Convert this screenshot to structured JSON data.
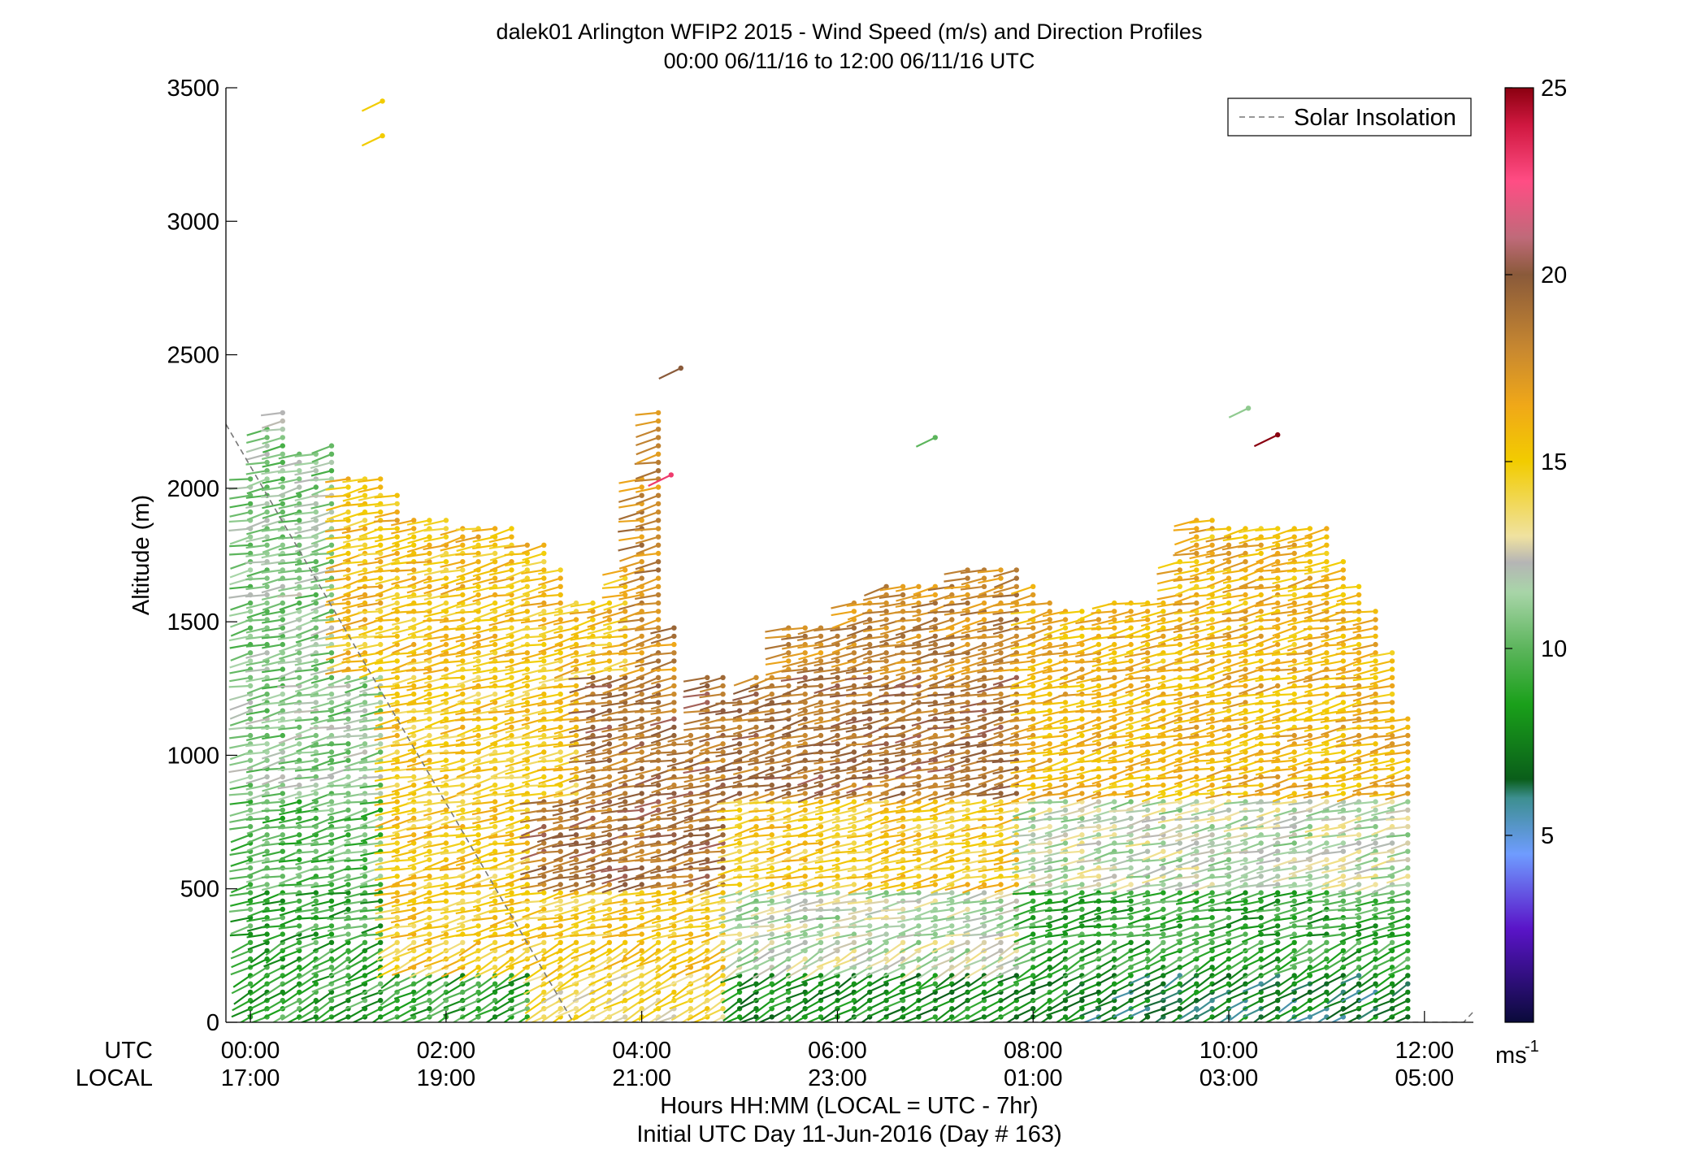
{
  "chart_data": {
    "type": "scatter",
    "title": "dalek01 Arlington WFIP2 2015 - Wind Speed (m/s) and Direction Profiles",
    "subtitle": "00:00 06/11/16 to 12:00 06/11/16  UTC",
    "ylabel": "Altitude (m)",
    "xlabel": "Hours HH:MM  (LOCAL = UTC - 7hr)",
    "xlabel2": "Initial UTC Day 11-Jun-2016 (Day # 163)",
    "row_label_utc": "UTC",
    "row_label_local": "LOCAL",
    "xlim": [
      -0.25,
      12.5
    ],
    "ylim": [
      0,
      3500
    ],
    "y_ticks": [
      0,
      500,
      1000,
      1500,
      2000,
      2500,
      3000,
      3500
    ],
    "x_ticks": [
      {
        "hour": 0,
        "utc": "00:00",
        "local": "17:00"
      },
      {
        "hour": 2,
        "utc": "02:00",
        "local": "19:00"
      },
      {
        "hour": 4,
        "utc": "04:00",
        "local": "21:00"
      },
      {
        "hour": 6,
        "utc": "06:00",
        "local": "23:00"
      },
      {
        "hour": 8,
        "utc": "08:00",
        "local": "01:00"
      },
      {
        "hour": 10,
        "utc": "10:00",
        "local": "03:00"
      },
      {
        "hour": 12,
        "utc": "12:00",
        "local": "05:00"
      }
    ],
    "legend": {
      "label": "Solar Insolation",
      "position": "top-right",
      "line_color": "#777777"
    },
    "solar_insolation": {
      "x": [
        -0.25,
        3.3,
        12.4,
        12.5
      ],
      "y": [
        2240,
        0,
        0,
        40
      ]
    },
    "colorbar": {
      "min": 0,
      "max": 25,
      "ticks": [
        5,
        10,
        15,
        20,
        25
      ],
      "unit": "ms-1",
      "stops": [
        {
          "v": 0,
          "color": "#0a0a3a"
        },
        {
          "v": 2.5,
          "color": "#5a14c8"
        },
        {
          "v": 4.5,
          "color": "#6f9cff"
        },
        {
          "v": 6,
          "color": "#3d8f90"
        },
        {
          "v": 6.5,
          "color": "#0a5e1a"
        },
        {
          "v": 8.5,
          "color": "#1aa01a"
        },
        {
          "v": 10,
          "color": "#5cb55c"
        },
        {
          "v": 11.5,
          "color": "#a8d5a8"
        },
        {
          "v": 12.3,
          "color": "#b5b5b5"
        },
        {
          "v": 13,
          "color": "#f0e2a0"
        },
        {
          "v": 15,
          "color": "#f2cc00"
        },
        {
          "v": 16.5,
          "color": "#f0a818"
        },
        {
          "v": 18,
          "color": "#c88830"
        },
        {
          "v": 20,
          "color": "#8a5a3a"
        },
        {
          "v": 21,
          "color": "#c06a7a"
        },
        {
          "v": 22.5,
          "color": "#ff4d84"
        },
        {
          "v": 24,
          "color": "#d01840"
        },
        {
          "v": 25,
          "color": "#8a0010"
        }
      ]
    },
    "profiles_note": "wind profiles every 10 minutes; each profile gives altitude-band speeds",
    "profile_times_hours": [
      0,
      0.17,
      0.33,
      0.5,
      0.67,
      0.83,
      1,
      1.17,
      1.33,
      1.5,
      1.67,
      1.83,
      2,
      2.17,
      2.33,
      2.5,
      2.67,
      2.83,
      3,
      3.17,
      3.33,
      3.5,
      3.67,
      3.83,
      4,
      4.17,
      4.33,
      4.5,
      4.67,
      4.83,
      5,
      5.17,
      5.33,
      5.5,
      5.67,
      5.83,
      6,
      6.17,
      6.33,
      6.5,
      6.67,
      6.83,
      7,
      7.17,
      7.33,
      7.5,
      7.67,
      7.83,
      8,
      8.17,
      8.33,
      8.5,
      8.67,
      8.83,
      9,
      9.17,
      9.33,
      9.5,
      9.67,
      9.83,
      10,
      10.17,
      10.33,
      10.5,
      10.67,
      10.83,
      11,
      11.17,
      11.33,
      11.5,
      11.67,
      11.83
    ],
    "profile_tops_m": [
      2050,
      2250,
      2300,
      2150,
      2150,
      2180,
      2050,
      2050,
      2050,
      2000,
      1900,
      1900,
      1900,
      1850,
      1850,
      1850,
      1850,
      1800,
      1800,
      1700,
      1600,
      1600,
      1600,
      1700,
      2050,
      2300,
      1500,
      1100,
      1300,
      1300,
      1200,
      1300,
      1300,
      1500,
      1500,
      1500,
      1500,
      1600,
      1600,
      1650,
      1650,
      1650,
      1650,
      1650,
      1700,
      1700,
      1700,
      1700,
      1650,
      1600,
      1550,
      1550,
      1550,
      1600,
      1600,
      1600,
      1600,
      1750,
      1900,
      1900,
      1850,
      1850,
      1850,
      1850,
      1850,
      1850,
      1850,
      1750,
      1650,
      1550,
      1400,
      1150
    ],
    "speed_bands": [
      {
        "alt": [
          0,
          200
        ],
        "speed_by_period": [
          [
            0,
            3,
            9
          ],
          [
            3,
            5,
            14
          ],
          [
            5,
            8.5,
            8
          ],
          [
            8.5,
            12,
            7
          ]
        ]
      },
      {
        "alt": [
          200,
          500
        ],
        "speed_by_period": [
          [
            0,
            1.5,
            9
          ],
          [
            1.5,
            5,
            15
          ],
          [
            5,
            8,
            12
          ],
          [
            8,
            12,
            9
          ]
        ]
      },
      {
        "alt": [
          500,
          850
        ],
        "speed_by_period": [
          [
            0,
            1.5,
            10
          ],
          [
            1.5,
            3,
            15
          ],
          [
            3,
            5,
            19
          ],
          [
            5,
            8,
            15
          ],
          [
            8,
            12,
            12
          ]
        ]
      },
      {
        "alt": [
          850,
          1300
        ],
        "speed_by_period": [
          [
            0,
            1.5,
            11
          ],
          [
            1.5,
            3.5,
            15
          ],
          [
            3.5,
            8,
            19
          ],
          [
            8,
            12,
            16
          ]
        ]
      },
      {
        "alt": [
          1300,
          2500
        ],
        "speed_by_period": [
          [
            0,
            1,
            11
          ],
          [
            1,
            4,
            15.5
          ],
          [
            4,
            8,
            18
          ],
          [
            8,
            12,
            16
          ]
        ]
      }
    ],
    "isolated_points": [
      {
        "x": 1.35,
        "y": 3450,
        "speed": 15
      },
      {
        "x": 1.35,
        "y": 3320,
        "speed": 15
      },
      {
        "x": 4.4,
        "y": 2450,
        "speed": 20
      },
      {
        "x": 4.3,
        "y": 2050,
        "speed": 23
      },
      {
        "x": 10.5,
        "y": 2200,
        "speed": 25
      },
      {
        "x": 7.0,
        "y": 2190,
        "speed": 10
      },
      {
        "x": 10.2,
        "y": 2300,
        "speed": 11
      }
    ]
  }
}
